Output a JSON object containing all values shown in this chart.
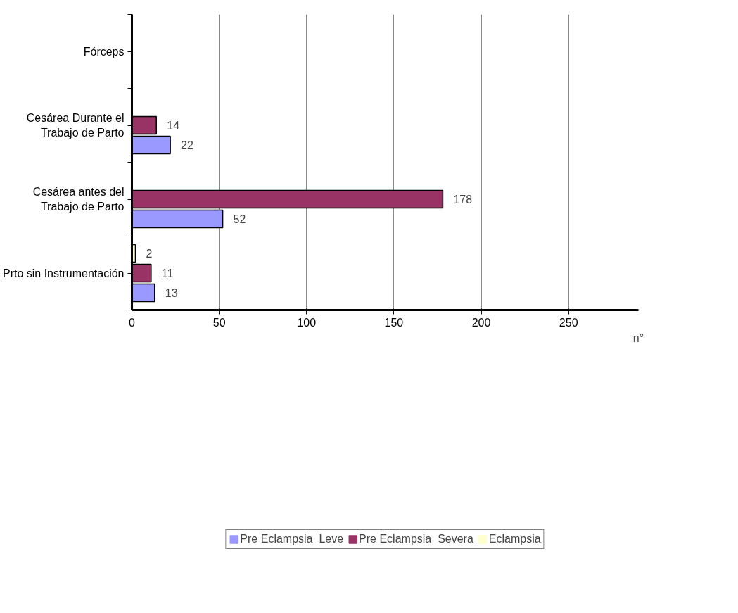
{
  "chart_data": {
    "type": "bar",
    "orientation": "horizontal",
    "xlabel": "n°",
    "categories": [
      "Fórceps",
      "Cesárea Durante el\nTrabajo de Parto",
      "Cesárea antes del\nTrabajo de Parto",
      "Prto sin Instrumentación"
    ],
    "series": [
      {
        "name": "Pre Eclampsia  Leve",
        "color": "#9999ff",
        "values": [
          0,
          22,
          52,
          13
        ],
        "value_labels": [
          null,
          "22",
          "52",
          "13"
        ]
      },
      {
        "name": "Pre Eclampsia  Severa",
        "color": "#993366",
        "values": [
          0,
          14,
          178,
          11
        ],
        "value_labels": [
          null,
          "14",
          "178",
          "11"
        ]
      },
      {
        "name": "Eclampsia",
        "color": "#ffffcc",
        "values": [
          0,
          0,
          0,
          2
        ],
        "value_labels": [
          null,
          null,
          null,
          "2"
        ]
      }
    ],
    "xlim": [
      0,
      290
    ],
    "xticks": [
      0,
      50,
      100,
      150,
      200,
      250
    ],
    "grid": "x",
    "legend": "bottom"
  }
}
